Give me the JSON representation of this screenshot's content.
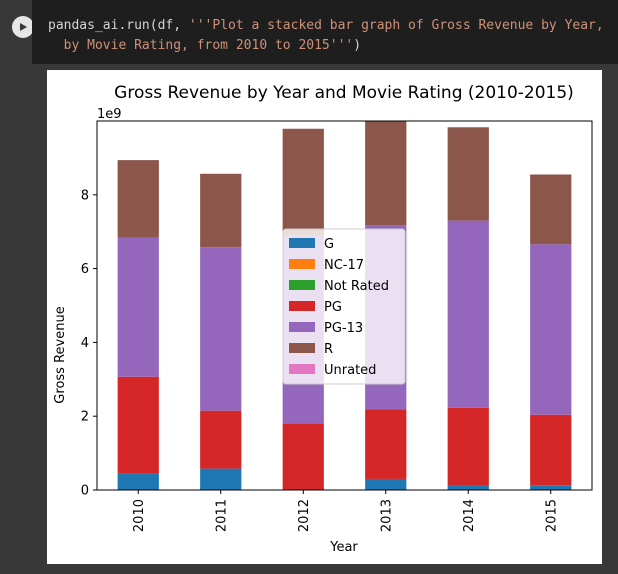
{
  "code": {
    "line1_prefix": "pandas_ai.run(df, ",
    "line1_string": "'''Plot a stacked bar graph of Gross Revenue by Year,",
    "line2_string": "  by Movie Rating, from 2010 to 2015'''",
    "line2_suffix": ")"
  },
  "chart_data": {
    "type": "bar",
    "stacked": true,
    "title": "Gross Revenue by Year and Movie Rating (2010-2015)",
    "xlabel": "Year",
    "ylabel": "Gross Revenue",
    "scale_label": "1e9",
    "ylim": [
      0,
      10
    ],
    "yticks": [
      0,
      2,
      4,
      6,
      8
    ],
    "categories": [
      "2010",
      "2011",
      "2012",
      "2013",
      "2014",
      "2015"
    ],
    "series": [
      {
        "name": "G",
        "color": "#1f77b4",
        "values": [
          0.45,
          0.58,
          0.0,
          0.3,
          0.12,
          0.13
        ]
      },
      {
        "name": "NC-17",
        "color": "#ff7f0e",
        "values": [
          0,
          0,
          0,
          0,
          0,
          0
        ]
      },
      {
        "name": "Not Rated",
        "color": "#2ca02c",
        "values": [
          0,
          0,
          0,
          0,
          0,
          0
        ]
      },
      {
        "name": "PG",
        "color": "#d62728",
        "values": [
          2.62,
          1.57,
          1.8,
          1.88,
          2.11,
          1.91
        ]
      },
      {
        "name": "PG-13",
        "color": "#9467bd",
        "values": [
          3.77,
          4.43,
          5.11,
          5.0,
          5.07,
          4.62
        ]
      },
      {
        "name": "R",
        "color": "#8c564b",
        "values": [
          2.1,
          1.99,
          2.88,
          2.82,
          2.53,
          1.89
        ]
      },
      {
        "name": "Unrated",
        "color": "#e377c2",
        "values": [
          0,
          0,
          0,
          0,
          0,
          0
        ]
      }
    ]
  }
}
